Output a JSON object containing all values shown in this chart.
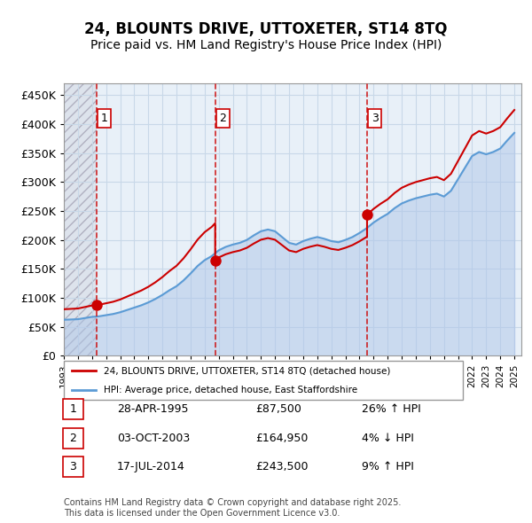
{
  "title_line1": "24, BLOUNTS DRIVE, UTTOXETER, ST14 8TQ",
  "title_line2": "Price paid vs. HM Land Registry's House Price Index (HPI)",
  "ylabel": "",
  "xlim_start": 1993.0,
  "xlim_end": 2025.5,
  "ylim_min": 0,
  "ylim_max": 470000,
  "yticks": [
    0,
    50000,
    100000,
    150000,
    200000,
    250000,
    300000,
    350000,
    400000,
    450000
  ],
  "ytick_labels": [
    "£0",
    "£50K",
    "£100K",
    "£150K",
    "£200K",
    "£250K",
    "£300K",
    "£350K",
    "£400K",
    "£450K"
  ],
  "xticks": [
    1993,
    1994,
    1995,
    1996,
    1997,
    1998,
    1999,
    2000,
    2001,
    2002,
    2003,
    2004,
    2005,
    2006,
    2007,
    2008,
    2009,
    2010,
    2011,
    2012,
    2013,
    2014,
    2015,
    2016,
    2017,
    2018,
    2019,
    2020,
    2021,
    2022,
    2023,
    2024,
    2025
  ],
  "sale_dates": [
    1995.33,
    2003.75,
    2014.54
  ],
  "sale_prices": [
    87500,
    164950,
    243500
  ],
  "sale_labels": [
    "1",
    "2",
    "3"
  ],
  "legend_line1": "24, BLOUNTS DRIVE, UTTOXETER, ST14 8TQ (detached house)",
  "legend_line2": "HPI: Average price, detached house, East Staffordshire",
  "table_rows": [
    {
      "label": "1",
      "date": "28-APR-1995",
      "price": "£87,500",
      "change": "26% ↑ HPI"
    },
    {
      "label": "2",
      "date": "03-OCT-2003",
      "price": "£164,950",
      "change": "4% ↓ HPI"
    },
    {
      "label": "3",
      "date": "17-JUL-2014",
      "price": "£243,500",
      "change": "9% ↑ HPI"
    }
  ],
  "footer": "Contains HM Land Registry data © Crown copyright and database right 2025.\nThis data is licensed under the Open Government Licence v3.0.",
  "hpi_color": "#aec6e8",
  "price_color": "#cc0000",
  "sale_vline_color": "#cc0000",
  "bg_hatch_color": "#c8c8d8",
  "grid_color": "#c8d8e8",
  "bg_chart_color": "#e8f0f8"
}
